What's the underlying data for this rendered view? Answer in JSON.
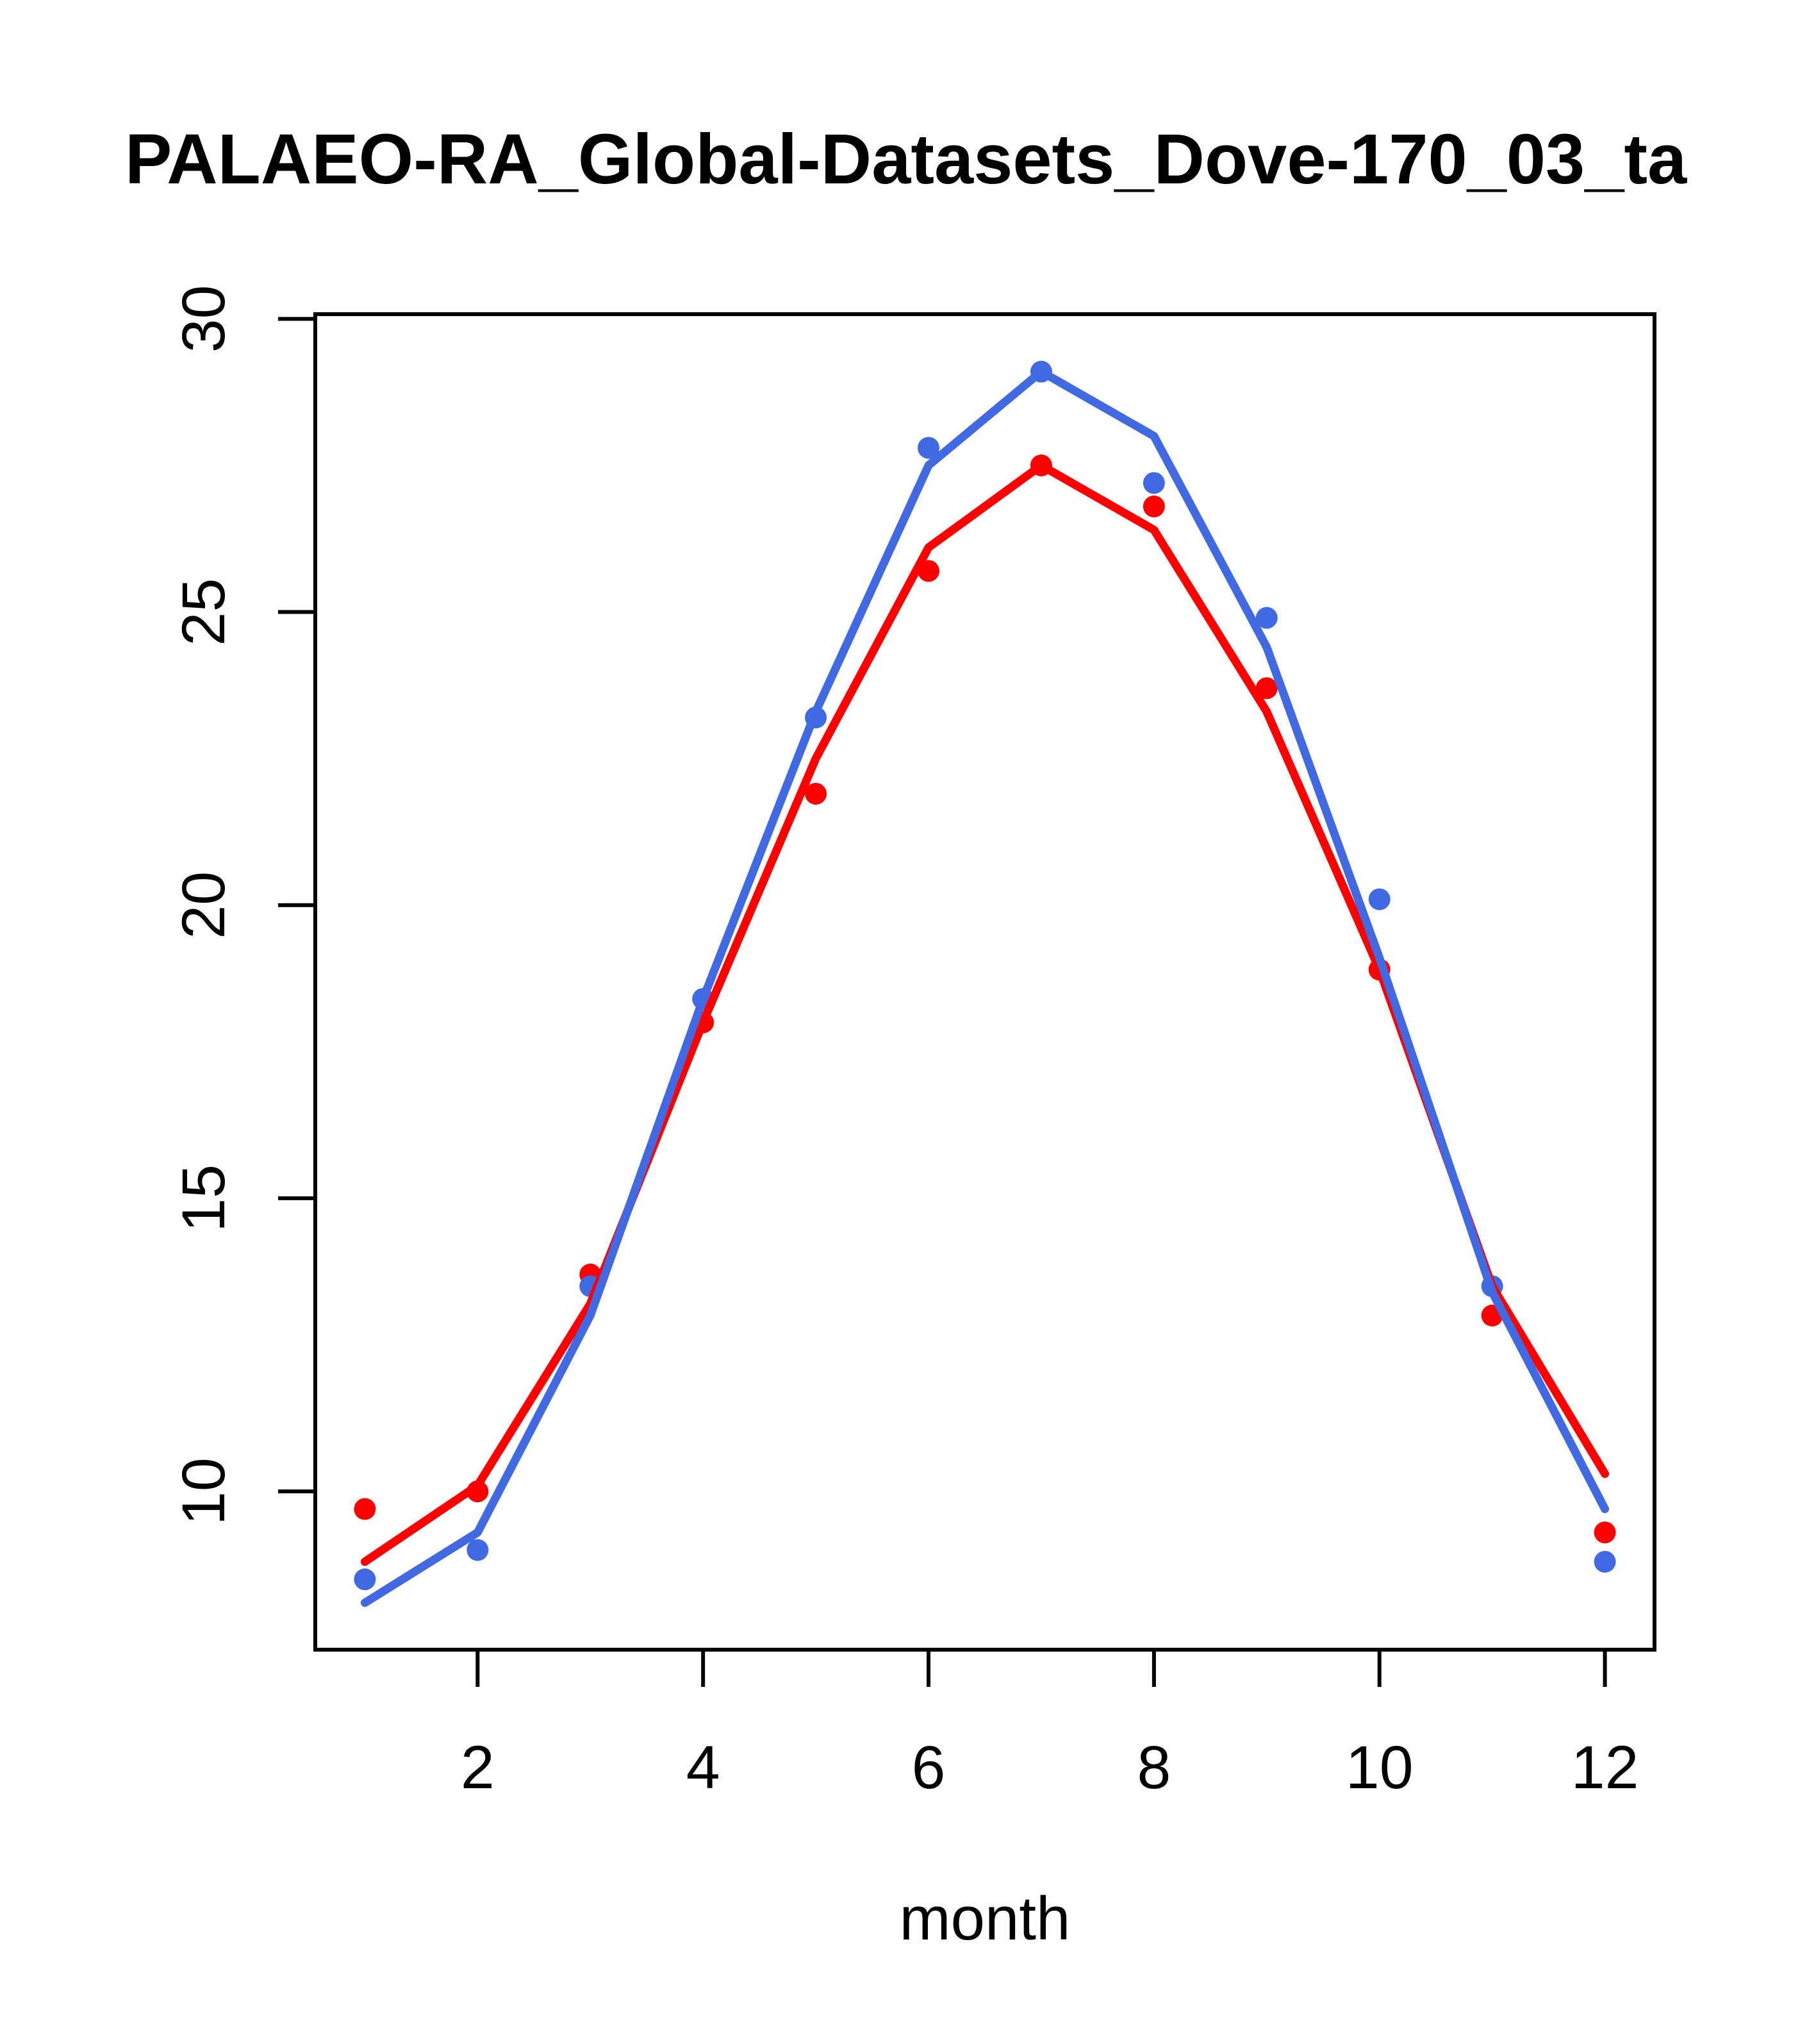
{
  "title": "PALAEO-RA_Global-Datasets_Dove-170_03_ta",
  "chart_data": {
    "type": "line",
    "title": "PALAEO-RA_Global-Datasets_Dove-170_03_ta",
    "xlabel": "month",
    "ylabel": "",
    "x": [
      1,
      2,
      3,
      4,
      5,
      6,
      7,
      8,
      9,
      10,
      11,
      12
    ],
    "x_ticks": [
      "2",
      "4",
      "6",
      "8",
      "10",
      "12"
    ],
    "x_tick_values": [
      2,
      4,
      6,
      8,
      10,
      12
    ],
    "y_ticks": [
      "10",
      "15",
      "20",
      "25",
      "30"
    ],
    "y_tick_values": [
      10,
      15,
      20,
      25,
      30
    ],
    "xlim": [
      0.56,
      12.44
    ],
    "ylim": [
      7.3,
      30.08
    ],
    "grid": false,
    "legend": "none",
    "series": [
      {
        "name": "red points",
        "type": "scatter",
        "color": "#ff0000",
        "values": [
          9.7,
          10.0,
          13.7,
          18.0,
          21.9,
          25.7,
          27.5,
          26.8,
          23.7,
          18.9,
          13.0,
          9.3
        ]
      },
      {
        "name": "blue points",
        "type": "scatter",
        "color": "#4169e1",
        "values": [
          8.5,
          9.0,
          13.5,
          18.4,
          23.2,
          27.8,
          29.1,
          27.2,
          24.9,
          20.1,
          13.5,
          8.8
        ]
      },
      {
        "name": "red line",
        "type": "line",
        "color": "#ff0000",
        "values": [
          8.8,
          10.1,
          13.2,
          18.0,
          22.5,
          26.1,
          27.5,
          26.4,
          23.3,
          18.9,
          13.5,
          10.3
        ]
      },
      {
        "name": "blue line",
        "type": "line",
        "color": "#4169e1",
        "values": [
          8.1,
          9.3,
          13.0,
          18.4,
          23.3,
          27.5,
          29.1,
          28.0,
          24.4,
          19.1,
          13.4,
          9.7
        ]
      }
    ]
  },
  "axis_color": "#000000",
  "background": "#ffffff"
}
